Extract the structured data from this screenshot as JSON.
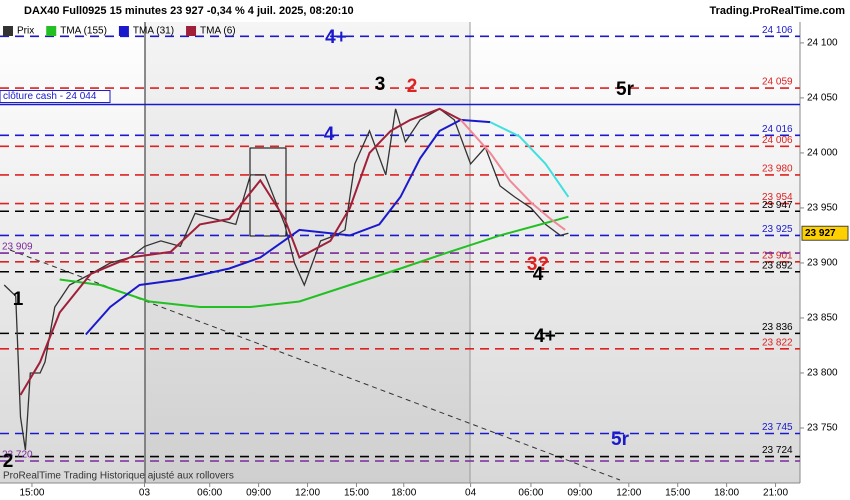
{
  "chart_data": {
    "type": "line",
    "title": "DAX40 Full0925 15 minutes 23 927 -0,34 % 4 juil. 2025, 08:20:10",
    "source": "Trading.ProRealTime.com",
    "footer": "ProRealTime Trading  Historique ajusté aux rollovers",
    "xlim": [
      -1.96,
      47.1
    ],
    "ylim": [
      23700,
      24119
    ],
    "xticks": [
      {
        "value": 0,
        "label": "15:00"
      },
      {
        "value": 6.9,
        "label": "03"
      },
      {
        "value": 10.9,
        "label": "06:00"
      },
      {
        "value": 13.9,
        "label": "09:00"
      },
      {
        "value": 16.9,
        "label": "12:00"
      },
      {
        "value": 19.9,
        "label": "15:00"
      },
      {
        "value": 22.8,
        "label": "18:00"
      },
      {
        "value": 26.9,
        "label": "04"
      },
      {
        "value": 30.6,
        "label": "06:00"
      },
      {
        "value": 33.6,
        "label": "09:00"
      },
      {
        "value": 36.6,
        "label": "12:00"
      },
      {
        "value": 39.6,
        "label": "15:00"
      },
      {
        "value": 42.6,
        "label": "18:00"
      },
      {
        "value": 45.6,
        "label": "21:00"
      }
    ],
    "yticks": [
      {
        "value": 24100,
        "label": "24 100"
      },
      {
        "value": 24050,
        "label": "24 050"
      },
      {
        "value": 24000,
        "label": "24 000"
      },
      {
        "value": 23950,
        "label": "23 950"
      },
      {
        "value": 23900,
        "label": "23 900"
      },
      {
        "value": 23850,
        "label": "23 850"
      },
      {
        "value": 23800,
        "label": "23 800"
      },
      {
        "value": 23750,
        "label": "23 750"
      }
    ],
    "series": [
      {
        "name": "Prix",
        "color": "#333333",
        "x": [
          -1.7,
          -1.0,
          -0.7,
          -0.4,
          -0.1,
          0.5,
          0.8,
          1.4,
          2.3,
          3.6,
          4.8,
          6.0,
          6.9,
          7.9,
          9.1,
          10.0,
          11.2,
          12.5,
          13.4,
          14.3,
          15.5,
          16.1,
          16.7,
          17.7,
          18.6,
          19.2,
          19.8,
          20.7,
          21.7,
          22.3,
          22.9,
          23.8,
          25.0,
          25.9,
          26.9,
          27.8,
          28.7,
          29.6,
          30.6,
          31.5,
          32.4,
          32.9
        ],
        "values": [
          23880,
          23870,
          23760,
          23730,
          23800,
          23800,
          23810,
          23860,
          23880,
          23890,
          23900,
          23905,
          23915,
          23920,
          23915,
          23945,
          23940,
          23935,
          23980,
          23980,
          23935,
          23900,
          23880,
          23920,
          23925,
          23930,
          23990,
          24020,
          23980,
          24040,
          24010,
          24030,
          24040,
          24030,
          23990,
          24005,
          23970,
          23960,
          23950,
          23935,
          23925,
          23927
        ]
      },
      {
        "name": "TMA (155)",
        "color": "#22c022",
        "x": [
          1.7,
          4.2,
          7.2,
          10.3,
          13.4,
          16.4,
          19.5,
          22.6,
          25.6,
          28.7,
          31.2,
          32.9
        ],
        "values": [
          23885,
          23880,
          23865,
          23860,
          23860,
          23865,
          23880,
          23895,
          23910,
          23925,
          23935,
          23942
        ]
      },
      {
        "name": "TMA (31)",
        "color": "#1a1acc",
        "x": [
          3.3,
          4.8,
          6.6,
          9.1,
          12.1,
          14.0,
          16.4,
          19.5,
          21.3,
          22.6,
          23.8,
          25.0,
          26.3,
          28.1
        ],
        "values": [
          23835,
          23860,
          23880,
          23885,
          23895,
          23905,
          23930,
          23925,
          23935,
          23960,
          23995,
          24020,
          24030,
          24028
        ]
      },
      {
        "name": "TMA (6)",
        "color": "#a0203a",
        "x": [
          -0.7,
          0.5,
          1.7,
          3.6,
          6.0,
          8.5,
          10.3,
          12.1,
          14.0,
          15.5,
          16.4,
          18.3,
          19.5,
          20.7,
          22.0,
          23.2,
          25.0,
          26.3
        ],
        "values": [
          23780,
          23810,
          23855,
          23890,
          23905,
          23910,
          23935,
          23940,
          23975,
          23940,
          23905,
          23920,
          23950,
          24000,
          24020,
          24030,
          24040,
          24030
        ]
      },
      {
        "color": "#40e0e0",
        "x": [
          28.1,
          29.9,
          31.5,
          32.9
        ],
        "values": [
          24028,
          24015,
          23990,
          23960
        ]
      },
      {
        "color": "#f08898",
        "x": [
          26.3,
          28.1,
          29.3,
          30.6,
          31.8,
          32.7
        ],
        "values": [
          24030,
          24000,
          23975,
          23955,
          23940,
          23930
        ]
      }
    ],
    "levels": [
      {
        "value": 24106,
        "label": "24 106",
        "color": "#1a1acc"
      },
      {
        "value": 24059,
        "label": "24 059",
        "color": "#dd2222"
      },
      {
        "value": 24016,
        "label": "24 016",
        "color": "#1a1acc"
      },
      {
        "value": 24006,
        "label": "24 006",
        "color": "#dd2222"
      },
      {
        "value": 23980,
        "label": "23 980",
        "color": "#dd2222"
      },
      {
        "value": 23954,
        "label": "23 954",
        "color": "#dd2222"
      },
      {
        "value": 23947,
        "label": "23 947",
        "color": "#000000"
      },
      {
        "value": 23925,
        "label": "23 925",
        "color": "#1a1acc"
      },
      {
        "value": 23901,
        "label": "23 901",
        "color": "#dd2222"
      },
      {
        "value": 23892,
        "label": "23 892",
        "color": "#000000"
      },
      {
        "value": 23836,
        "label": "23 836",
        "color": "#000000"
      },
      {
        "value": 23822,
        "label": "23 822",
        "color": "#dd2222"
      },
      {
        "value": 23745,
        "label": "23 745",
        "color": "#1a1acc"
      },
      {
        "value": 23724,
        "label": "23 724",
        "color": "#000000"
      }
    ],
    "left_levels": [
      {
        "value": 23909,
        "label": "23 909",
        "color": "#7a2a9a"
      },
      {
        "value": 23720,
        "label": "23 720",
        "color": "#7a2a9a"
      }
    ],
    "close_line": {
      "value": 24044,
      "label": "clôture cash - 24 044",
      "color": "#1a1acc"
    },
    "last_price": {
      "value": 23927,
      "label": "23 927"
    },
    "annotations": [
      {
        "text": "4+",
        "color": "#1a1acc"
      },
      {
        "text": "3",
        "color": "#000000"
      },
      {
        "text": "2",
        "color": "#dd2222"
      },
      {
        "text": "5r",
        "color": "#000000"
      },
      {
        "text": "4",
        "color": "#1a1acc"
      },
      {
        "text": "1",
        "color": "#000000"
      },
      {
        "text": "2",
        "color": "#000000"
      },
      {
        "text": "3?",
        "color": "#dd2222"
      },
      {
        "text": "4",
        "color": "#000000"
      },
      {
        "text": "4+",
        "color": "#000000"
      },
      {
        "text": "5r",
        "color": "#1a1acc"
      }
    ]
  }
}
